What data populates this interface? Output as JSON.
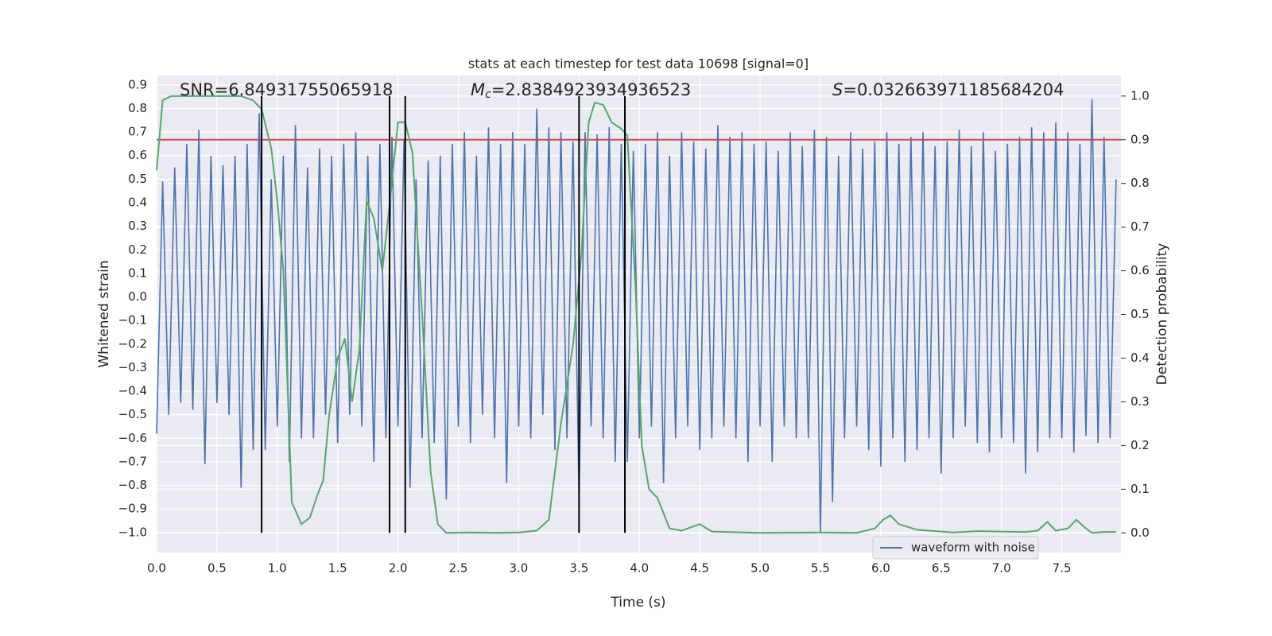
{
  "chart_data": {
    "type": "line",
    "title": "stats at each timestep for test data 10698 [signal=0]",
    "xlabel": "Time (s)",
    "ylabel": "Whitened strain",
    "y2label": "Detection probability",
    "annotations": [
      {
        "text": "SNR=6.84931755065918"
      },
      {
        "symbol": "M",
        "sub": "c",
        "text": "=2.8384923934936523"
      },
      {
        "symbol": "S",
        "text": "=0.032663971185684204"
      }
    ],
    "xlim": [
      0,
      7.99
    ],
    "ylim": [
      -1.085,
      0.94
    ],
    "y2lim": [
      -0.045,
      1.047
    ],
    "xticks": [
      {
        "value": 0,
        "label": "0.0"
      },
      {
        "value": 0.5,
        "label": "0.5"
      },
      {
        "value": 1,
        "label": "1.0"
      },
      {
        "value": 1.5,
        "label": "1.5"
      },
      {
        "value": 2,
        "label": "2.0"
      },
      {
        "value": 2.5,
        "label": "2.5"
      },
      {
        "value": 3,
        "label": "3.0"
      },
      {
        "value": 3.5,
        "label": "3.5"
      },
      {
        "value": 4,
        "label": "4.0"
      },
      {
        "value": 4.5,
        "label": "4.5"
      },
      {
        "value": 5,
        "label": "5.0"
      },
      {
        "value": 5.5,
        "label": "5.5"
      },
      {
        "value": 6,
        "label": "6.0"
      },
      {
        "value": 6.5,
        "label": "6.5"
      },
      {
        "value": 7,
        "label": "7.0"
      },
      {
        "value": 7.5,
        "label": "7.5"
      }
    ],
    "yticks": [
      {
        "value": -1,
        "label": "−1.0"
      },
      {
        "value": -0.9,
        "label": "−0.9"
      },
      {
        "value": -0.8,
        "label": "−0.8"
      },
      {
        "value": -0.7,
        "label": "−0.7"
      },
      {
        "value": -0.6,
        "label": "−0.6"
      },
      {
        "value": -0.5,
        "label": "−0.5"
      },
      {
        "value": -0.4,
        "label": "−0.4"
      },
      {
        "value": -0.3,
        "label": "−0.3"
      },
      {
        "value": -0.2,
        "label": "−0.2"
      },
      {
        "value": -0.1,
        "label": "−0.1"
      },
      {
        "value": 0,
        "label": "0.0"
      },
      {
        "value": 0.1,
        "label": "0.1"
      },
      {
        "value": 0.2,
        "label": "0.2"
      },
      {
        "value": 0.3,
        "label": "0.3"
      },
      {
        "value": 0.4,
        "label": "0.4"
      },
      {
        "value": 0.5,
        "label": "0.5"
      },
      {
        "value": 0.6,
        "label": "0.6"
      },
      {
        "value": 0.7,
        "label": "0.7"
      },
      {
        "value": 0.8,
        "label": "0.8"
      },
      {
        "value": 0.9,
        "label": "0.9"
      }
    ],
    "y2ticks": [
      {
        "value": 0,
        "label": "0.0"
      },
      {
        "value": 0.1,
        "label": "0.1"
      },
      {
        "value": 0.2,
        "label": "0.2"
      },
      {
        "value": 0.3,
        "label": "0.3"
      },
      {
        "value": 0.4,
        "label": "0.4"
      },
      {
        "value": 0.5,
        "label": "0.5"
      },
      {
        "value": 0.6,
        "label": "0.6"
      },
      {
        "value": 0.7,
        "label": "0.7"
      },
      {
        "value": 0.8,
        "label": "0.8"
      },
      {
        "value": 0.9,
        "label": "0.9"
      },
      {
        "value": 1,
        "label": "1.0"
      }
    ],
    "grid": true,
    "legend": "lower right",
    "threshold": {
      "value": 0.9,
      "axis": "y2",
      "color": "#c44e52"
    },
    "markers": {
      "x": [
        0.87,
        1.93,
        2.06,
        3.5,
        3.88
      ],
      "y2": [
        0,
        1
      ],
      "color": "#000000"
    },
    "series": [
      {
        "name": "waveform with noise",
        "color": "#4c72b0",
        "x": [
          0,
          0.05,
          0.1,
          0.15,
          0.2,
          0.25,
          0.3,
          0.35,
          0.4,
          0.45,
          0.5,
          0.55,
          0.6,
          0.65,
          0.7,
          0.75,
          0.8,
          0.85,
          0.9,
          0.95,
          1,
          1.05,
          1.1,
          1.15,
          1.2,
          1.25,
          1.3,
          1.35,
          1.4,
          1.45,
          1.5,
          1.55,
          1.6,
          1.65,
          1.7,
          1.75,
          1.8,
          1.85,
          1.9,
          1.95,
          2,
          2.05,
          2.1,
          2.15,
          2.2,
          2.25,
          2.3,
          2.35,
          2.4,
          2.45,
          2.5,
          2.55,
          2.6,
          2.65,
          2.7,
          2.75,
          2.8,
          2.85,
          2.9,
          2.95,
          3,
          3.05,
          3.1,
          3.15,
          3.2,
          3.25,
          3.3,
          3.35,
          3.4,
          3.45,
          3.5,
          3.55,
          3.6,
          3.65,
          3.7,
          3.75,
          3.8,
          3.85,
          3.9,
          3.95,
          4,
          4.05,
          4.1,
          4.15,
          4.2,
          4.25,
          4.3,
          4.35,
          4.4,
          4.45,
          4.5,
          4.55,
          4.6,
          4.65,
          4.7,
          4.75,
          4.8,
          4.85,
          4.9,
          4.95,
          5,
          5.05,
          5.1,
          5.15,
          5.2,
          5.25,
          5.3,
          5.35,
          5.4,
          5.45,
          5.5,
          5.55,
          5.6,
          5.65,
          5.7,
          5.75,
          5.8,
          5.85,
          5.9,
          5.95,
          6,
          6.05,
          6.1,
          6.15,
          6.2,
          6.25,
          6.3,
          6.35,
          6.4,
          6.45,
          6.5,
          6.55,
          6.6,
          6.65,
          6.7,
          6.75,
          6.8,
          6.85,
          6.9,
          6.95,
          7,
          7.05,
          7.1,
          7.15,
          7.2,
          7.25,
          7.3,
          7.35,
          7.4,
          7.45,
          7.5,
          7.55,
          7.6,
          7.65,
          7.7,
          7.75,
          7.8,
          7.85,
          7.9,
          7.95
        ],
        "values": [
          -0.58,
          0.49,
          -0.5,
          0.55,
          -0.45,
          0.65,
          -0.48,
          0.71,
          -0.71,
          0.6,
          -0.45,
          0.56,
          -0.5,
          0.6,
          -0.81,
          0.65,
          -0.65,
          0.78,
          -0.65,
          0.5,
          -0.55,
          0.6,
          -0.7,
          0.73,
          -0.6,
          0.55,
          -0.6,
          0.63,
          -0.5,
          0.6,
          -0.62,
          0.65,
          -0.5,
          0.7,
          -0.55,
          0.6,
          -0.7,
          0.65,
          -0.6,
          0.68,
          -0.55,
          0.67,
          -0.81,
          0.5,
          -0.6,
          0.58,
          -0.62,
          0.6,
          -0.86,
          0.65,
          -0.55,
          0.7,
          -0.62,
          0.6,
          -0.5,
          0.72,
          -0.6,
          0.65,
          -0.79,
          0.7,
          -0.55,
          0.65,
          -0.6,
          0.8,
          -0.5,
          0.72,
          -0.65,
          0.7,
          -0.6,
          0.66,
          -0.85,
          0.7,
          -0.55,
          0.69,
          -0.6,
          0.72,
          -0.7,
          0.65,
          -0.7,
          0.62,
          -0.6,
          0.65,
          -0.55,
          0.7,
          -0.79,
          0.6,
          -0.6,
          0.7,
          -0.55,
          0.66,
          -0.65,
          0.63,
          -0.6,
          0.73,
          -0.55,
          0.68,
          -0.6,
          0.7,
          -0.7,
          0.65,
          -0.55,
          0.66,
          -0.7,
          0.62,
          -0.55,
          0.7,
          -0.6,
          0.64,
          -0.6,
          0.71,
          -1.0,
          0.68,
          -0.87,
          0.6,
          -0.6,
          0.7,
          -0.55,
          0.63,
          -0.65,
          0.66,
          -0.72,
          0.7,
          -0.6,
          0.65,
          -0.7,
          0.68,
          -0.65,
          0.7,
          -0.6,
          0.64,
          -0.75,
          0.66,
          -0.6,
          0.71,
          -0.55,
          0.64,
          -0.62,
          0.7,
          -0.66,
          0.62,
          -0.6,
          0.65,
          -0.62,
          0.68,
          -0.75,
          0.72,
          -0.66,
          0.7,
          -0.6,
          0.74,
          -0.6,
          0.7,
          -0.66,
          0.65,
          -0.59,
          0.84,
          -0.62,
          0.68,
          -0.6,
          0.5
        ]
      },
      {
        "axis": "y2",
        "color": "#55a868",
        "x": [
          0,
          0.05,
          0.12,
          0.3,
          0.5,
          0.7,
          0.8,
          0.87,
          0.95,
          1,
          1.05,
          1.12,
          1.2,
          1.27,
          1.33,
          1.38,
          1.43,
          1.5,
          1.56,
          1.62,
          1.68,
          1.74,
          1.8,
          1.87,
          1.93,
          2,
          2.06,
          2.12,
          2.2,
          2.27,
          2.33,
          2.4,
          2.6,
          2.8,
          3,
          3.15,
          3.25,
          3.35,
          3.45,
          3.52,
          3.58,
          3.63,
          3.7,
          3.77,
          3.85,
          3.9,
          3.97,
          4.02,
          4.08,
          4.15,
          4.25,
          4.35,
          4.5,
          4.6,
          5,
          5.5,
          5.8,
          5.95,
          6.02,
          6.08,
          6.15,
          6.3,
          6.6,
          6.8,
          7.2,
          7.3,
          7.38,
          7.45,
          7.55,
          7.62,
          7.7,
          7.75,
          7.85,
          7.95
        ],
        "values": [
          0.83,
          0.99,
          1.0,
          1.0,
          1.0,
          1.0,
          0.99,
          0.97,
          0.88,
          0.76,
          0.6,
          0.07,
          0.02,
          0.035,
          0.085,
          0.12,
          0.27,
          0.4,
          0.445,
          0.3,
          0.42,
          0.76,
          0.72,
          0.6,
          0.75,
          0.94,
          0.94,
          0.87,
          0.5,
          0.14,
          0.02,
          0.0,
          0.001,
          0.0,
          0.001,
          0.005,
          0.03,
          0.25,
          0.43,
          0.64,
          0.94,
          0.985,
          0.98,
          0.94,
          0.925,
          0.91,
          0.55,
          0.2,
          0.1,
          0.08,
          0.01,
          0.005,
          0.02,
          0.003,
          0.0,
          0.001,
          0.0,
          0.01,
          0.03,
          0.04,
          0.02,
          0.007,
          0.001,
          0.004,
          0.002,
          0.005,
          0.025,
          0.005,
          0.01,
          0.03,
          0.01,
          0.0,
          0.002,
          0.002
        ]
      }
    ]
  }
}
